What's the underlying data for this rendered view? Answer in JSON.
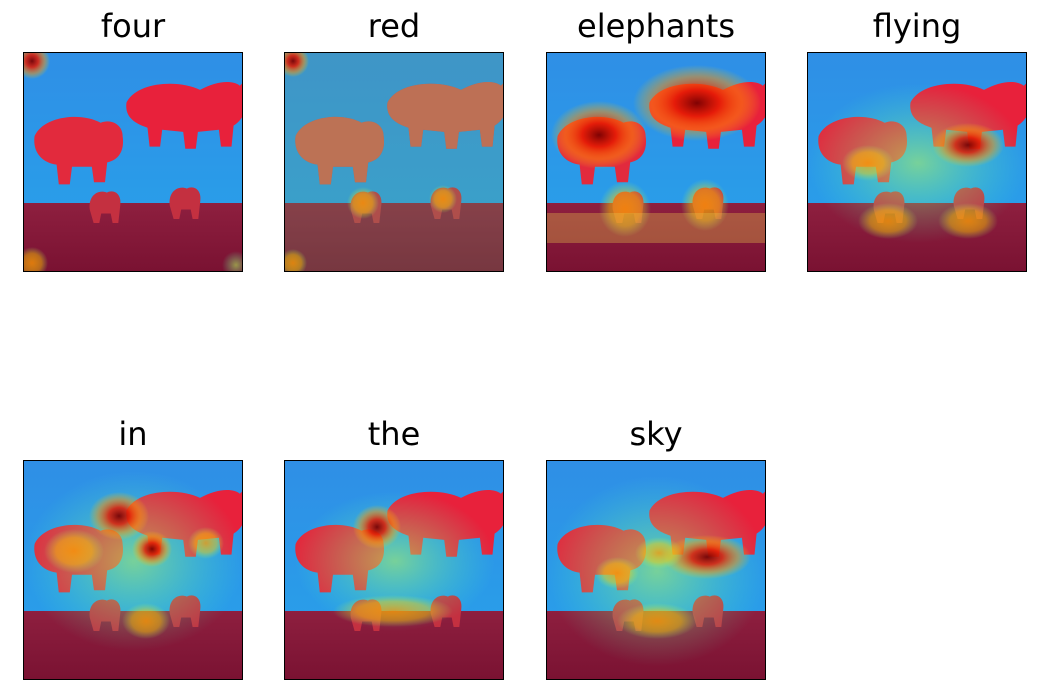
{
  "figure": {
    "panels": [
      {
        "title": "four"
      },
      {
        "title": "red"
      },
      {
        "title": "elephants"
      },
      {
        "title": "flying"
      },
      {
        "title": "in"
      },
      {
        "title": "the"
      },
      {
        "title": "sky"
      }
    ]
  }
}
